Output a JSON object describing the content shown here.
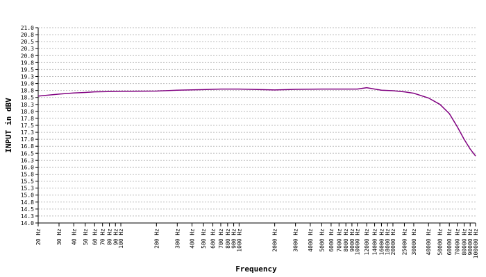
{
  "chart_data": {
    "type": "line",
    "xlabel": "Frequency",
    "ylabel": "INPUT in dBV",
    "xscale": "log",
    "grid": true,
    "color": "#800080",
    "xlim": [
      20,
      100000
    ],
    "ylim": [
      14.0,
      21.0
    ],
    "xticks": [
      {
        "value": 20,
        "label": "20 Hz"
      },
      {
        "value": 30,
        "label": "30 Hz"
      },
      {
        "value": 40,
        "label": "40 Hz"
      },
      {
        "value": 50,
        "label": "50 Hz"
      },
      {
        "value": 60,
        "label": "60 Hz"
      },
      {
        "value": 70,
        "label": "70 Hz"
      },
      {
        "value": 80,
        "label": "80 Hz"
      },
      {
        "value": 90,
        "label": "90 Hz"
      },
      {
        "value": 100,
        "label": "100 Hz"
      },
      {
        "value": 200,
        "label": "200 Hz"
      },
      {
        "value": 300,
        "label": "300 Hz"
      },
      {
        "value": 400,
        "label": "400 Hz"
      },
      {
        "value": 500,
        "label": "500 Hz"
      },
      {
        "value": 600,
        "label": "600 Hz"
      },
      {
        "value": 700,
        "label": "700 Hz"
      },
      {
        "value": 800,
        "label": "800 Hz"
      },
      {
        "value": 900,
        "label": "900 Hz"
      },
      {
        "value": 1000,
        "label": "1000 Hz"
      },
      {
        "value": 2000,
        "label": "2000 Hz"
      },
      {
        "value": 3000,
        "label": "3000 Hz"
      },
      {
        "value": 4000,
        "label": "4000 Hz"
      },
      {
        "value": 5000,
        "label": "5000 Hz"
      },
      {
        "value": 6000,
        "label": "6000 Hz"
      },
      {
        "value": 7000,
        "label": "7000 Hz"
      },
      {
        "value": 8000,
        "label": "8000 Hz"
      },
      {
        "value": 9000,
        "label": "9000 Hz"
      },
      {
        "value": 10000,
        "label": "10000 Hz"
      },
      {
        "value": 12000,
        "label": "12000 Hz"
      },
      {
        "value": 14000,
        "label": "14000 Hz"
      },
      {
        "value": 16000,
        "label": "16000 Hz"
      },
      {
        "value": 18000,
        "label": "18000 Hz"
      },
      {
        "value": 20000,
        "label": "20000 Hz"
      },
      {
        "value": 25000,
        "label": "25000 Hz"
      },
      {
        "value": 30000,
        "label": "30000 Hz"
      },
      {
        "value": 40000,
        "label": "40000 Hz"
      },
      {
        "value": 50000,
        "label": "50000 Hz"
      },
      {
        "value": 60000,
        "label": "60000 Hz"
      },
      {
        "value": 70000,
        "label": "70000 Hz"
      },
      {
        "value": 80000,
        "label": "80000 Hz"
      },
      {
        "value": 90000,
        "label": "90000 Hz"
      },
      {
        "value": 100000,
        "label": "100000 Hz"
      }
    ],
    "yticks": [
      {
        "value": 21.0,
        "label": "21.0"
      },
      {
        "value": 20.75,
        "label": "20.8"
      },
      {
        "value": 20.5,
        "label": "20.5"
      },
      {
        "value": 20.25,
        "label": "20.3"
      },
      {
        "value": 20.0,
        "label": "20.0"
      },
      {
        "value": 19.75,
        "label": "19.8"
      },
      {
        "value": 19.5,
        "label": "19.5"
      },
      {
        "value": 19.25,
        "label": "19.3"
      },
      {
        "value": 19.0,
        "label": "19.0"
      },
      {
        "value": 18.75,
        "label": "18.8"
      },
      {
        "value": 18.5,
        "label": "18.5"
      },
      {
        "value": 18.25,
        "label": "18.3"
      },
      {
        "value": 18.0,
        "label": "18.0"
      },
      {
        "value": 17.75,
        "label": "17.8"
      },
      {
        "value": 17.5,
        "label": "17.5"
      },
      {
        "value": 17.25,
        "label": "17.3"
      },
      {
        "value": 17.0,
        "label": "17.0"
      },
      {
        "value": 16.75,
        "label": "16.8"
      },
      {
        "value": 16.5,
        "label": "16.5"
      },
      {
        "value": 16.25,
        "label": "16.3"
      },
      {
        "value": 16.0,
        "label": "16.0"
      },
      {
        "value": 15.75,
        "label": "15.8"
      },
      {
        "value": 15.5,
        "label": "15.5"
      },
      {
        "value": 15.25,
        "label": "15.3"
      },
      {
        "value": 15.0,
        "label": "15.0"
      },
      {
        "value": 14.75,
        "label": "14.8"
      },
      {
        "value": 14.5,
        "label": "14.5"
      },
      {
        "value": 14.25,
        "label": "14.3"
      },
      {
        "value": 14.0,
        "label": "14.0"
      }
    ],
    "x": [
      20,
      30,
      40,
      50,
      60,
      100,
      200,
      300,
      500,
      700,
      1000,
      2000,
      3000,
      5000,
      10000,
      12000,
      14000,
      16000,
      20000,
      25000,
      30000,
      40000,
      50000,
      60000,
      70000,
      80000,
      90000,
      100000
    ],
    "values": [
      18.55,
      18.62,
      18.66,
      18.68,
      18.7,
      18.72,
      18.73,
      18.76,
      18.78,
      18.8,
      18.8,
      18.77,
      18.79,
      18.8,
      18.8,
      18.85,
      18.8,
      18.76,
      18.74,
      18.7,
      18.65,
      18.48,
      18.25,
      17.92,
      17.45,
      17.0,
      16.65,
      16.4
    ]
  }
}
